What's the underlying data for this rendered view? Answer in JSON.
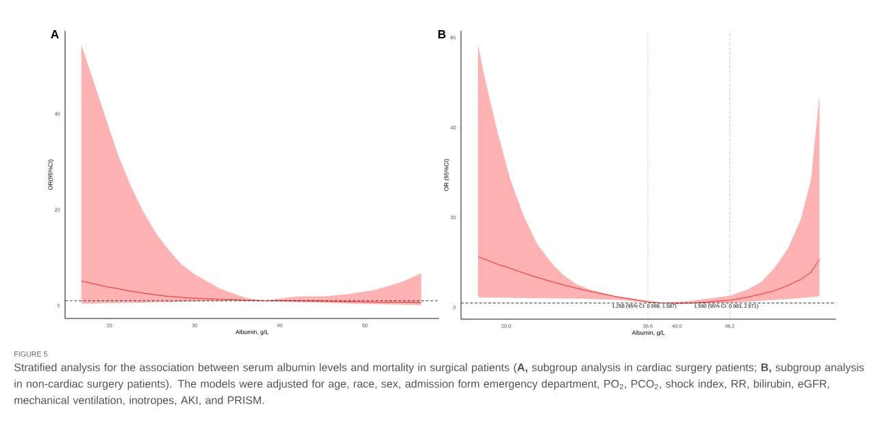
{
  "chart_data": [
    {
      "type": "line",
      "title": "A",
      "xlabel": "Albumin, g/L",
      "ylabel": "OR(95%CI)",
      "x": [
        16.7,
        18,
        19.5,
        21,
        22.5,
        24,
        25.5,
        27,
        28.5,
        30,
        33,
        36,
        38.2,
        40.7,
        42.2,
        45.2,
        48.2,
        51.3,
        54.3,
        56.6
      ],
      "series": [
        {
          "color": "#ff0000",
          "values": [
            5.1,
            4.6,
            4.0,
            3.5,
            3.0,
            2.6,
            2.2,
            1.9,
            1.7,
            1.5,
            1.3,
            1.1,
            1.0,
            1.0,
            1.0,
            0.9,
            0.8,
            0.7,
            0.7,
            0.6
          ],
          "upper": [
            54.4,
            47.5,
            39.5,
            31.5,
            25,
            19.5,
            15,
            11.5,
            8.5,
            6.5,
            3.5,
            1.6,
            1.0,
            1.6,
            1.9,
            1.9,
            2.4,
            3.3,
            4.9,
            6.7
          ],
          "lower": [
            0.4,
            0.4,
            0.5,
            0.5,
            0.6,
            0.6,
            0.7,
            0.7,
            0.8,
            0.85,
            0.9,
            1.0,
            1.0,
            0.8,
            0.7,
            0.6,
            0.4,
            0.3,
            0.2,
            0.1
          ]
        }
      ],
      "xlim": [
        14.8,
        58.7
      ],
      "ylim": [
        -2.7,
        57.3
      ],
      "xticks": [
        20,
        30,
        40,
        50
      ],
      "yticks": [
        0,
        20,
        40
      ],
      "line_style": "solid",
      "ref_lines": [
        {
          "axis": "y",
          "value": 1,
          "color": "#000000",
          "line_style": "dashed"
        }
      ],
      "annotations": [
        "FIGURE 5",
        "Stratified analysis for the association between serum albumin levels and mortality in surgical patients (**A,** subgroup analysis in cardiac surgery patients; **B,** subgroup analysis in non-cardiac surgery patients). The models were adjusted for age, race, sex, admission form emergency department, PO$_{2}$, PCO$_{2}$, shock index, RR, bilirubin, eGFR, mechanical ventilation, inotropes, AKI, and PRISM."
      ]
    },
    {
      "type": "line",
      "title": "B",
      "xlabel": "Albumin, g/L",
      "ylabel": "OR (95%CI)",
      "x": [
        16.7,
        17.4,
        19.0,
        20.5,
        22.1,
        23.6,
        25.2,
        26.7,
        28.2,
        29.8,
        32.9,
        36.6,
        38.1,
        40.0,
        42.2,
        46.2,
        48.3,
        49.9,
        51.4,
        53.0,
        54.5,
        55.7,
        56.7
      ],
      "series": [
        {
          "color": "#ff0000",
          "values": [
            11.3,
            10.8,
            9.6,
            8.7,
            7.6,
            6.7,
            5.8,
            5.0,
            4.3,
            3.6,
            2.4,
            1.2,
            1.0,
            0.9,
            1.0,
            1.6,
            2.3,
            3.0,
            3.7,
            4.9,
            6.2,
            7.8,
            10.7
          ],
          "upper": [
            58.6,
            51.7,
            38.8,
            28.3,
            20.1,
            14.2,
            10.1,
            7.2,
            5.2,
            4.0,
            2.5,
            1.5,
            1.05,
            1.2,
            1.6,
            2.6,
            4.0,
            5.7,
            8.7,
            13.1,
            19.5,
            28.3,
            47.3
          ],
          "lower": [
            2.3,
            2.2,
            2.2,
            2.15,
            2.1,
            2.1,
            2.05,
            2.0,
            1.95,
            1.9,
            1.7,
            1.2,
            1.0,
            0.8,
            0.9,
            1.1,
            1.3,
            1.5,
            1.7,
            1.9,
            2.1,
            2.3,
            2.5
          ]
        }
      ],
      "xlim": [
        14.7,
        58.6
      ],
      "ylim": [
        -2.6,
        61.5
      ],
      "xticks": [
        {
          "value": 20,
          "label": "20.0"
        },
        36.6,
        {
          "value": 40,
          "label": "40.0"
        },
        46.2
      ],
      "yticks": [
        0,
        20,
        40,
        60
      ],
      "line_style": "solid",
      "ref_lines": [
        {
          "axis": "y",
          "value": 1,
          "color": "#000000",
          "line_style": "dashed"
        },
        {
          "axis": "x",
          "value": 36.6,
          "color": "#90ee90",
          "line_style": "dashed"
        },
        {
          "axis": "x",
          "value": 46.2,
          "color": "#90ee90",
          "line_style": "dashed"
        }
      ],
      "annotations": [
        {
          "text": "1.258 (95% CI: 0.998, 1.587)",
          "x": 36.6,
          "y": 1
        },
        {
          "text": "1.590 (95% CI: 0.983, 2.571)",
          "x": 46.2,
          "y": 1
        }
      ]
    }
  ]
}
